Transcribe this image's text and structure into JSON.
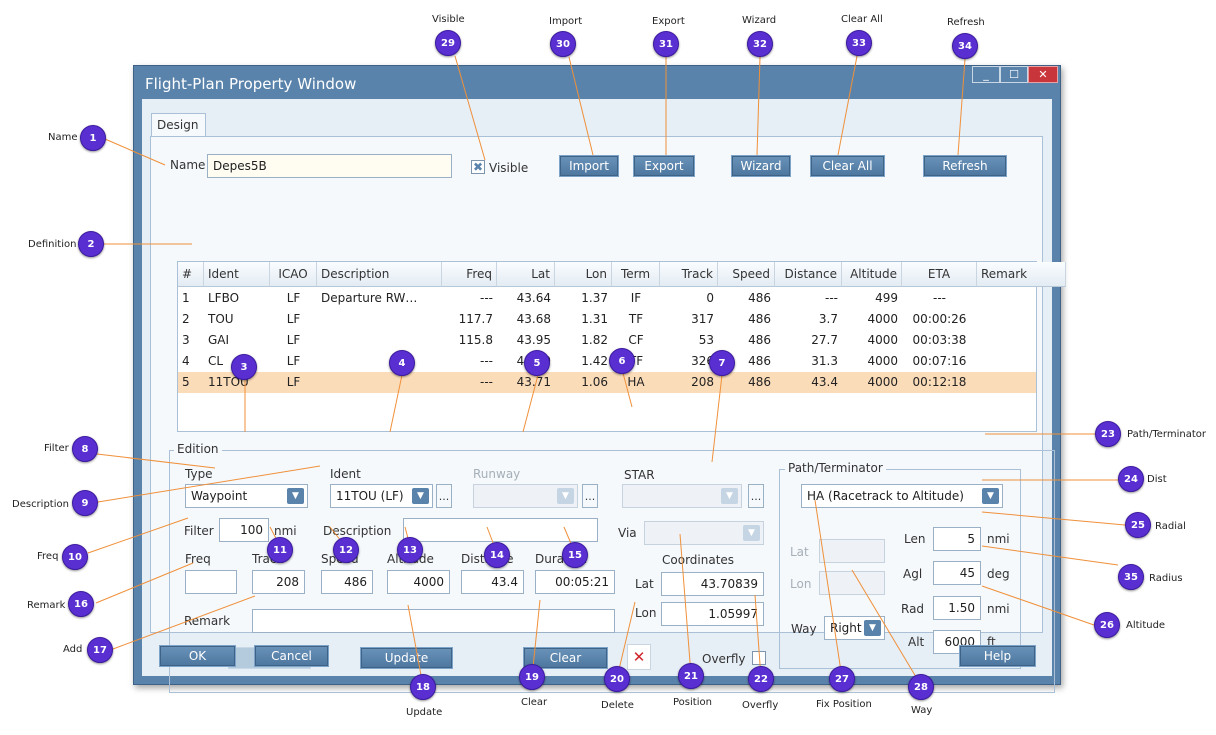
{
  "window": {
    "title": "Flight-Plan Property Window",
    "minimize": "_",
    "maximize": "☐",
    "close": "✕"
  },
  "tabs": [
    {
      "label": "Design"
    }
  ],
  "top": {
    "name_label": "Name",
    "name_value": "Depes5B",
    "visible_label": "Visible",
    "visible_checked": true,
    "import_label": "Import",
    "export_label": "Export",
    "wizard_label": "Wizard",
    "clear_all_label": "Clear All",
    "refresh_label": "Refresh"
  },
  "grid": {
    "columns": [
      "#",
      "Ident",
      "ICAO",
      "Description",
      "Freq",
      "Lat",
      "Lon",
      "Term",
      "Track",
      "Speed",
      "Distance",
      "Altitude",
      "ETA",
      "Remark"
    ],
    "rows": [
      [
        "1",
        "LFBO",
        "LF",
        "Departure RW…",
        "---",
        "43.64",
        "1.37",
        "IF",
        "0",
        "486",
        "---",
        "499",
        "---",
        ""
      ],
      [
        "2",
        "TOU",
        "LF",
        "",
        "117.7",
        "43.68",
        "1.31",
        "TF",
        "317",
        "486",
        "3.7",
        "4000",
        "00:00:26",
        ""
      ],
      [
        "3",
        "GAI",
        "LF",
        "",
        "115.8",
        "43.95",
        "1.82",
        "CF",
        "53",
        "486",
        "27.7",
        "4000",
        "00:03:38",
        ""
      ],
      [
        "4",
        "CL",
        "LF",
        "",
        "---",
        "44.39",
        "1.42",
        "TF",
        "326",
        "486",
        "31.3",
        "4000",
        "00:07:16",
        ""
      ],
      [
        "5",
        "11TOU",
        "LF",
        "",
        "---",
        "43.71",
        "1.06",
        "HA",
        "208",
        "486",
        "43.4",
        "4000",
        "00:12:18",
        ""
      ]
    ],
    "selected_row": 5
  },
  "edition": {
    "legend": "Edition",
    "type_label": "Type",
    "type_value": "Waypoint",
    "ident_label": "Ident",
    "ident_value": "11TOU (LF)",
    "runway_label": "Runway",
    "star_label": "STAR",
    "via_label": "Via",
    "more": "...",
    "filter_label": "Filter",
    "filter_value": "100",
    "filter_unit": "nmi",
    "description_label": "Description",
    "description_value": "",
    "freq_label": "Freq",
    "freq_value": "",
    "track_label": "Track",
    "track_value": "208",
    "speed_label": "Speed",
    "speed_value": "486",
    "altitude_label": "Altitude",
    "altitude_value": "4000",
    "distance_label": "Distance",
    "distance_value": "43.4",
    "duration_label": "Duration",
    "duration_value": "00:05:21",
    "remark_label": "Remark",
    "remark_value": "",
    "coordinates_label": "Coordinates",
    "lat_label": "Lat",
    "lat_value": "43.70839",
    "lon_label": "Lon",
    "lon_value": "1.05997",
    "add_label": "Add",
    "update_label": "Update",
    "clear_label": "Clear",
    "delete_glyph": "✕",
    "overfly_label": "Overfly",
    "overfly_checked": false
  },
  "path_terminator": {
    "legend": "Path/Terminator",
    "value": "HA (Racetrack to Altitude)",
    "fix_lat_label": "Lat",
    "fix_lon_label": "Lon",
    "way_label": "Way",
    "way_value": "Right",
    "len_label": "Len",
    "len_value": "5",
    "len_unit": "nmi",
    "agl_label": "Agl",
    "agl_value": "45",
    "agl_unit": "deg",
    "rad_label": "Rad",
    "rad_value": "1.50",
    "rad_unit": "nmi",
    "alt_label": "Alt",
    "alt_value": "6000",
    "alt_unit": "ft"
  },
  "bottom": {
    "ok_label": "OK",
    "cancel_label": "Cancel",
    "help_label": "Help"
  },
  "callouts": [
    {
      "n": "1",
      "label": "Name"
    },
    {
      "n": "2",
      "label": "Definition"
    },
    {
      "n": "3",
      "label": ""
    },
    {
      "n": "4",
      "label": ""
    },
    {
      "n": "5",
      "label": ""
    },
    {
      "n": "6",
      "label": ""
    },
    {
      "n": "7",
      "label": ""
    },
    {
      "n": "8",
      "label": "Filter"
    },
    {
      "n": "9",
      "label": "Description"
    },
    {
      "n": "10",
      "label": "Freq"
    },
    {
      "n": "11",
      "label": ""
    },
    {
      "n": "12",
      "label": ""
    },
    {
      "n": "13",
      "label": ""
    },
    {
      "n": "14",
      "label": ""
    },
    {
      "n": "15",
      "label": ""
    },
    {
      "n": "16",
      "label": "Remark"
    },
    {
      "n": "17",
      "label": "Add"
    },
    {
      "n": "18",
      "label": "Update"
    },
    {
      "n": "19",
      "label": "Clear"
    },
    {
      "n": "20",
      "label": "Delete"
    },
    {
      "n": "21",
      "label": "Position"
    },
    {
      "n": "22",
      "label": "Overfly"
    },
    {
      "n": "23",
      "label": "Path/Terminator"
    },
    {
      "n": "24",
      "label": "Dist"
    },
    {
      "n": "25",
      "label": "Radial"
    },
    {
      "n": "26",
      "label": "Altitude"
    },
    {
      "n": "27",
      "label": "Fix Position"
    },
    {
      "n": "28",
      "label": "Way"
    },
    {
      "n": "29",
      "label": "Visible"
    },
    {
      "n": "30",
      "label": "Import"
    },
    {
      "n": "31",
      "label": "Export"
    },
    {
      "n": "32",
      "label": "Wizard"
    },
    {
      "n": "33",
      "label": "Clear All"
    },
    {
      "n": "34",
      "label": "Refresh"
    },
    {
      "n": "35",
      "label": "Radius"
    }
  ],
  "colors": {
    "callout": "#5a2fd1",
    "leader": "#f0903a",
    "selection": "#fbdcb9",
    "frame": "#5a83ab"
  }
}
